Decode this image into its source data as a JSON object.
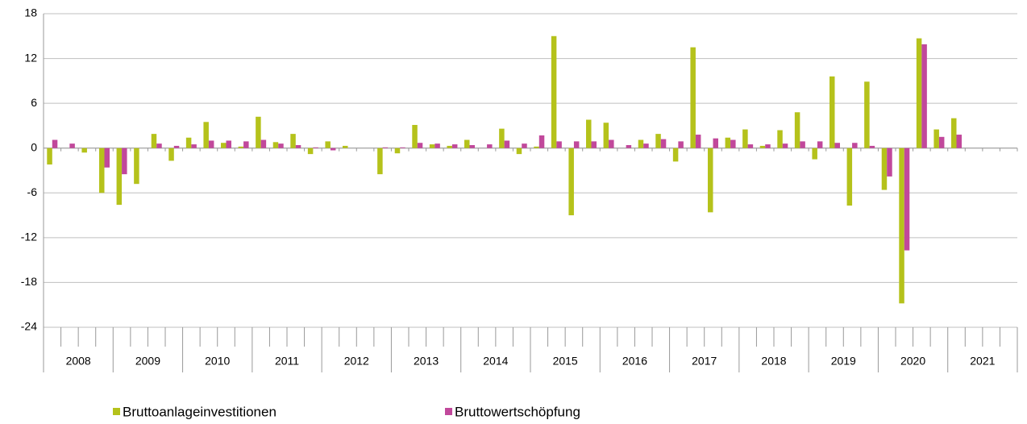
{
  "chart_data": {
    "type": "bar",
    "categories": [
      "2008",
      null,
      null,
      null,
      "2009",
      null,
      null,
      null,
      "2010",
      null,
      null,
      null,
      "2011",
      null,
      null,
      null,
      "2012",
      null,
      null,
      null,
      "2013",
      null,
      null,
      null,
      "2014",
      null,
      null,
      null,
      "2015",
      null,
      null,
      null,
      "2016",
      null,
      null,
      null,
      "2017",
      null,
      null,
      null,
      "2018",
      null,
      null,
      null,
      "2019",
      null,
      null,
      null,
      "2020",
      null,
      null,
      null,
      "2021",
      null,
      null,
      null
    ],
    "series": [
      {
        "name": "Bruttoanlageinvestitionen",
        "color": "#b5c21b",
        "values": [
          -2.2,
          0,
          -0.6,
          -6,
          -7.6,
          -4.8,
          1.9,
          -1.7,
          1.4,
          3.5,
          0.7,
          0.2,
          4.2,
          0.8,
          1.9,
          -0.8,
          0.9,
          0.3,
          0,
          -3.5,
          -0.7,
          3.1,
          0.5,
          0.3,
          1.1,
          0,
          2.6,
          -0.8,
          0.2,
          15,
          -9,
          3.8,
          3.4,
          0,
          1.1,
          1.9,
          -1.8,
          13.5,
          -8.6,
          1.4,
          2.5,
          0.3,
          2.4,
          4.8,
          -1.5,
          9.6,
          -7.7,
          8.9,
          -5.6,
          -20.8,
          14.7,
          2.5,
          4,
          null,
          null,
          null
        ]
      },
      {
        "name": "Bruttowertschöpfung",
        "color": "#c1489b",
        "values": [
          1.1,
          0.6,
          0,
          -2.6,
          -3.5,
          0,
          0.6,
          0.3,
          0.5,
          1,
          1,
          0.9,
          1.1,
          0.6,
          0.4,
          0.1,
          -0.3,
          0,
          0,
          0.1,
          0.1,
          0.7,
          0.6,
          0.5,
          0.4,
          0.5,
          1,
          0.6,
          1.7,
          0.9,
          0.9,
          0.9,
          1.1,
          0.4,
          0.6,
          1.2,
          0.9,
          1.8,
          1.3,
          1.1,
          0.5,
          0.5,
          0.6,
          0.9,
          0.9,
          0.7,
          0.7,
          0.3,
          -3.8,
          -13.7,
          13.9,
          1.5,
          1.8,
          null,
          null,
          null
        ]
      }
    ],
    "ylim": [
      -24,
      18
    ],
    "yticks": [
      18,
      12,
      6,
      0,
      -6,
      -12,
      -18,
      -24
    ],
    "grid": true
  }
}
